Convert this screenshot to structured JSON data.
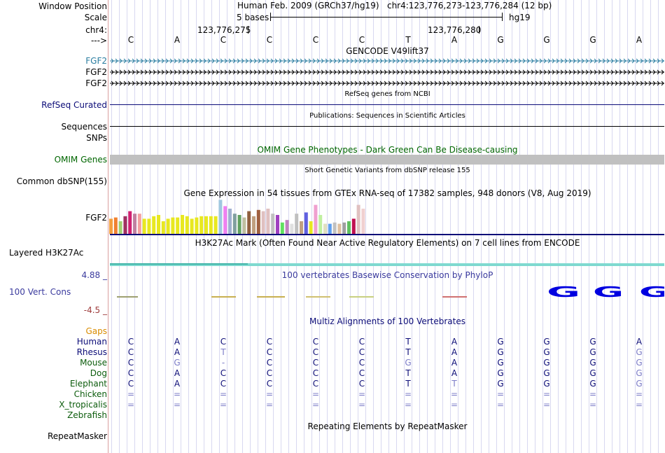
{
  "header": {
    "window_position_label": "Window Position",
    "scale_label": "Scale",
    "chrom_label": "chr4:",
    "strand_label": "--->",
    "assembly": "Human Feb. 2009 (GRCh37/hg19)",
    "position": "chr4:123,776,273-123,776,284 (12 bp)",
    "scale_text": "5 bases",
    "db": "hg19",
    "coord1": "123,776,275",
    "coord2": "123,776,280"
  },
  "sequence": [
    "C",
    "A",
    "C",
    "C",
    "C",
    "C",
    "T",
    "A",
    "G",
    "G",
    "G",
    "A"
  ],
  "gencode": {
    "title": "GENCODE V49lift37",
    "genes": [
      "FGF2",
      "FGF2",
      "FGF2"
    ]
  },
  "refseq": {
    "title": "RefSeq genes from NCBI",
    "label": "RefSeq Curated"
  },
  "publications": {
    "title": "Publications: Sequences in Scientific Articles",
    "label": "Sequences"
  },
  "snps": {
    "label": "SNPs"
  },
  "omim": {
    "title": "OMIM Gene Phenotypes - Dark Green Can Be Disease-causing",
    "label": "OMIM Genes"
  },
  "dbsnp": {
    "title": "Short Genetic Variants from dbSNP release 155",
    "label": "Common dbSNP(155)"
  },
  "gtex": {
    "title": "Gene Expression in 54 tissues from GTEx RNA-seq of 17382 samples, 948 donors (V8, Aug 2019)",
    "label": "FGF2"
  },
  "h3k27ac": {
    "title": "H3K27Ac Mark (Often Found Near Active Regulatory Elements) on 7 cell lines from ENCODE",
    "label": "Layered H3K27Ac"
  },
  "phylop": {
    "title": "100 vertebrates Basewise Conservation by PhyloP",
    "label": "100 Vert. Cons",
    "max": "4.88 _",
    "min": "-4.5 _",
    "logo_bases": [
      "G",
      "G",
      "G"
    ]
  },
  "multiz": {
    "title": "Multiz Alignments of 100 Vertebrates",
    "gaps_label": "Gaps",
    "species": [
      {
        "name": "Human",
        "bases": [
          "C",
          "A",
          "C",
          "C",
          "C",
          "C",
          "T",
          "A",
          "G",
          "G",
          "G",
          "A"
        ]
      },
      {
        "name": "Rhesus",
        "bases": [
          "C",
          "A",
          "T",
          "C",
          "C",
          "C",
          "T",
          "A",
          "G",
          "G",
          "G",
          "G"
        ]
      },
      {
        "name": "Mouse",
        "bases": [
          "C",
          "G",
          "-",
          "C",
          "C",
          "C",
          "G",
          "A",
          "G",
          "G",
          "G",
          "G"
        ]
      },
      {
        "name": "Dog",
        "bases": [
          "C",
          "A",
          "C",
          "C",
          "C",
          "C",
          "T",
          "A",
          "G",
          "G",
          "G",
          "G"
        ]
      },
      {
        "name": "Elephant",
        "bases": [
          "C",
          "A",
          "C",
          "C",
          "C",
          "C",
          "T",
          "T",
          "G",
          "G",
          "G",
          "G"
        ]
      },
      {
        "name": "Chicken",
        "bases": [
          "=",
          "=",
          "=",
          "=",
          "=",
          "=",
          "=",
          "=",
          "=",
          "=",
          "=",
          "="
        ]
      },
      {
        "name": "X_tropicalis",
        "bases": [
          "=",
          "=",
          "=",
          "=",
          "=",
          "=",
          "=",
          "=",
          "=",
          "=",
          "=",
          "="
        ]
      },
      {
        "name": "Zebrafish",
        "bases": [
          "",
          "",
          "",
          "",
          "",
          "",
          "",
          "",
          "",
          "",
          "",
          ""
        ]
      }
    ]
  },
  "repeatmasker": {
    "title": "Repeating Elements by RepeatMasker",
    "label": "RepeatMasker"
  },
  "colors": {
    "gencode": "#000000",
    "gencode_first": "#2a7da0",
    "refseq": "#0c0c78",
    "omim": "#006600",
    "omim_bar": "#c0c0c0",
    "phylop_label": "#3b3b9e",
    "phylop_min": "#9e3b3b",
    "gaps": "#d98c00",
    "species_primate": "#0c0c78",
    "species_other": "#0c5c0c",
    "mismatch": "#7c7cc8",
    "h3k27ac": "#7fd9d0"
  }
}
